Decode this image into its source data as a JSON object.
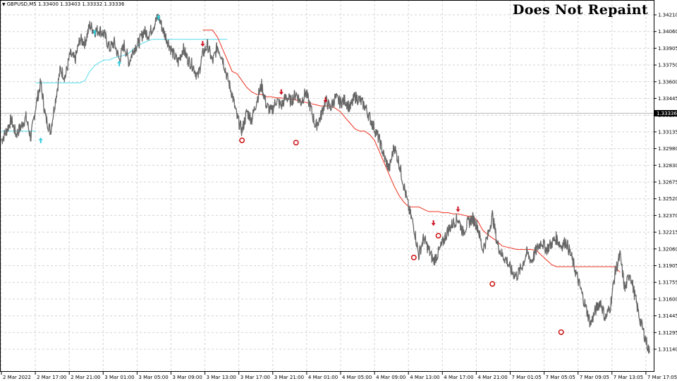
{
  "header": {
    "symbol_info": "GBPUSD,M5  1.33400 1.33403 1.33332 1.33336",
    "banner": "Does Not Repaint"
  },
  "colors": {
    "price": "#666666",
    "stop_up": "#55ddee",
    "stop_down": "#ee3322",
    "arrow_up": "#33ccdd",
    "arrow_down": "#cc1122",
    "circle": "#cc1111",
    "grid": "#d4d4d4",
    "current_price_bg": "#000000"
  },
  "chart_data": {
    "type": "line",
    "symbol": "GBPUSD",
    "timeframe": "M5",
    "grid": true,
    "ylim": [
      1.3114,
      1.34285
    ],
    "y_ticks": [
      "1.34210",
      "1.34060",
      "1.33905",
      "1.33750",
      "1.33600",
      "1.33445",
      "1.33290",
      "1.33135",
      "1.32980",
      "1.32830",
      "1.32675",
      "1.32520",
      "1.32370",
      "1.32215",
      "1.32060",
      "1.31905",
      "1.31755",
      "1.31600",
      "1.31445",
      "1.31295",
      "1.31140"
    ],
    "current_price": "1.33336",
    "x_ticks": [
      "2 Mar 2022",
      "2 Mar 17:00",
      "2 Mar 21:00",
      "3 Mar 01:00",
      "3 Mar 05:00",
      "3 Mar 09:00",
      "3 Mar 13:00",
      "3 Mar 17:00",
      "3 Mar 21:00",
      "4 Mar 01:00",
      "4 Mar 05:00",
      "4 Mar 09:00",
      "4 Mar 13:00",
      "4 Mar 17:00",
      "4 Mar 21:00",
      "7 Mar 01:05",
      "7 Mar 05:05",
      "7 Mar 09:05",
      "7 Mar 13:05",
      "7 Mar 17:05"
    ],
    "series": [
      {
        "role": "price",
        "values": [
          1.331,
          1.3318,
          1.3328,
          1.3315,
          1.3322,
          1.333,
          1.3312,
          1.334,
          1.336,
          1.333,
          1.3318,
          1.3345,
          1.3372,
          1.3365,
          1.3385,
          1.338,
          1.3398,
          1.3395,
          1.341,
          1.3405,
          1.3406,
          1.3402,
          1.339,
          1.3395,
          1.338,
          1.3393,
          1.3378,
          1.339,
          1.3395,
          1.3405,
          1.3402,
          1.341,
          1.3418,
          1.3405,
          1.3395,
          1.3385,
          1.3378,
          1.339,
          1.338,
          1.3375,
          1.3365,
          1.3385,
          1.3393,
          1.3378,
          1.3392,
          1.3382,
          1.3365,
          1.335,
          1.333,
          1.3318,
          1.3335,
          1.3328,
          1.3345,
          1.3358,
          1.334,
          1.3335,
          1.3345,
          1.334,
          1.3348,
          1.3344,
          1.3351,
          1.3343,
          1.3352,
          1.3338,
          1.3322,
          1.333,
          1.3345,
          1.3338,
          1.3347,
          1.3343,
          1.3345,
          1.3338,
          1.3348,
          1.3345,
          1.334,
          1.333,
          1.332,
          1.331,
          1.3295,
          1.3285,
          1.3305,
          1.329,
          1.327,
          1.325,
          1.3235,
          1.321,
          1.3225,
          1.3215,
          1.3205,
          1.3212,
          1.3222,
          1.3232,
          1.3238,
          1.3242,
          1.323,
          1.3238,
          1.3242,
          1.3235,
          1.3215,
          1.3225,
          1.3245,
          1.322,
          1.321,
          1.3205,
          1.3195,
          1.3192,
          1.32,
          1.3212,
          1.3205,
          1.3215,
          1.3222,
          1.3215,
          1.322,
          1.3225,
          1.3218,
          1.3222,
          1.321,
          1.3195,
          1.318,
          1.3165,
          1.315,
          1.3162,
          1.317,
          1.3155,
          1.3165,
          1.3195,
          1.321,
          1.318,
          1.3195,
          1.3175,
          1.3155,
          1.314,
          1.3125
        ]
      },
      {
        "role": "stop-up",
        "segments": [
          {
            "from": 0,
            "values": [
              1.3318,
              1.3318,
              1.3318,
              1.3318,
              1.3318,
              1.3318,
              1.3318,
              1.3318
            ]
          },
          {
            "from": 7,
            "values": [
              1.336,
              1.336,
              1.336,
              1.336,
              1.336,
              1.336,
              1.336,
              1.336,
              1.336,
              1.336,
              1.3362,
              1.337,
              1.3375,
              1.3378,
              1.338,
              1.338,
              1.3382,
              1.3383,
              1.3384,
              1.3386,
              1.339,
              1.3393,
              1.3395,
              1.3397,
              1.3398,
              1.3398,
              1.3398,
              1.3398,
              1.3398,
              1.3398,
              1.3398,
              1.3398,
              1.3398,
              1.3398,
              1.3398,
              1.3398,
              1.3398,
              1.3398,
              1.3398,
              1.3398
            ]
          }
        ]
      },
      {
        "role": "stop-down",
        "segments": [
          {
            "from": 41,
            "values": [
              1.3406,
              1.3406,
              1.3406,
              1.34,
              1.339,
              1.338,
              1.337,
              1.3368,
              1.3362,
              1.3356,
              1.3352,
              1.335,
              1.335,
              1.3348,
              1.3348,
              1.3347,
              1.3347,
              1.3346,
              1.3346,
              1.3345,
              1.3344,
              1.3343,
              1.3342,
              1.3341,
              1.334,
              1.334,
              1.334,
              1.3338,
              1.3335,
              1.333,
              1.3325,
              1.332,
              1.3318,
              1.3318,
              1.3315,
              1.331,
              1.33,
              1.329,
              1.328,
              1.327,
              1.3262,
              1.3256,
              1.3252,
              1.3252,
              1.3252,
              1.325,
              1.3248,
              1.3248,
              1.3248,
              1.3247,
              1.3247,
              1.3246,
              1.3246,
              1.3245,
              1.3244,
              1.3244,
              1.324,
              1.3232,
              1.3228,
              1.3225,
              1.3222,
              1.3218,
              1.3217,
              1.3216,
              1.3215,
              1.3215,
              1.3215,
              1.3215,
              1.3214,
              1.321,
              1.3206,
              1.3202,
              1.32,
              1.32,
              1.32,
              1.32,
              1.32,
              1.32,
              1.32,
              1.32,
              1.32,
              1.32,
              1.32,
              1.32,
              1.32,
              1.3195
            ]
          }
        ]
      }
    ],
    "arrows": [
      {
        "dir": "up",
        "i": 8,
        "price": 1.331
      },
      {
        "dir": "up",
        "i": 19,
        "price": 1.3404
      },
      {
        "dir": "up",
        "i": 24,
        "price": 1.3377
      },
      {
        "dir": "up",
        "i": 32,
        "price": 1.3417
      },
      {
        "dir": "down",
        "i": 41,
        "price": 1.3394
      },
      {
        "dir": "down",
        "i": 57,
        "price": 1.3352
      },
      {
        "dir": "down",
        "i": 66,
        "price": 1.3345
      },
      {
        "dir": "down",
        "i": 88,
        "price": 1.3238
      },
      {
        "dir": "down",
        "i": 93,
        "price": 1.325
      }
    ],
    "circles": [
      {
        "i": 49,
        "price": 1.331
      },
      {
        "i": 60,
        "price": 1.3308
      },
      {
        "i": 84,
        "price": 1.3208
      },
      {
        "i": 89,
        "price": 1.3227
      },
      {
        "i": 100,
        "price": 1.3185
      },
      {
        "i": 114,
        "price": 1.3143
      }
    ]
  }
}
